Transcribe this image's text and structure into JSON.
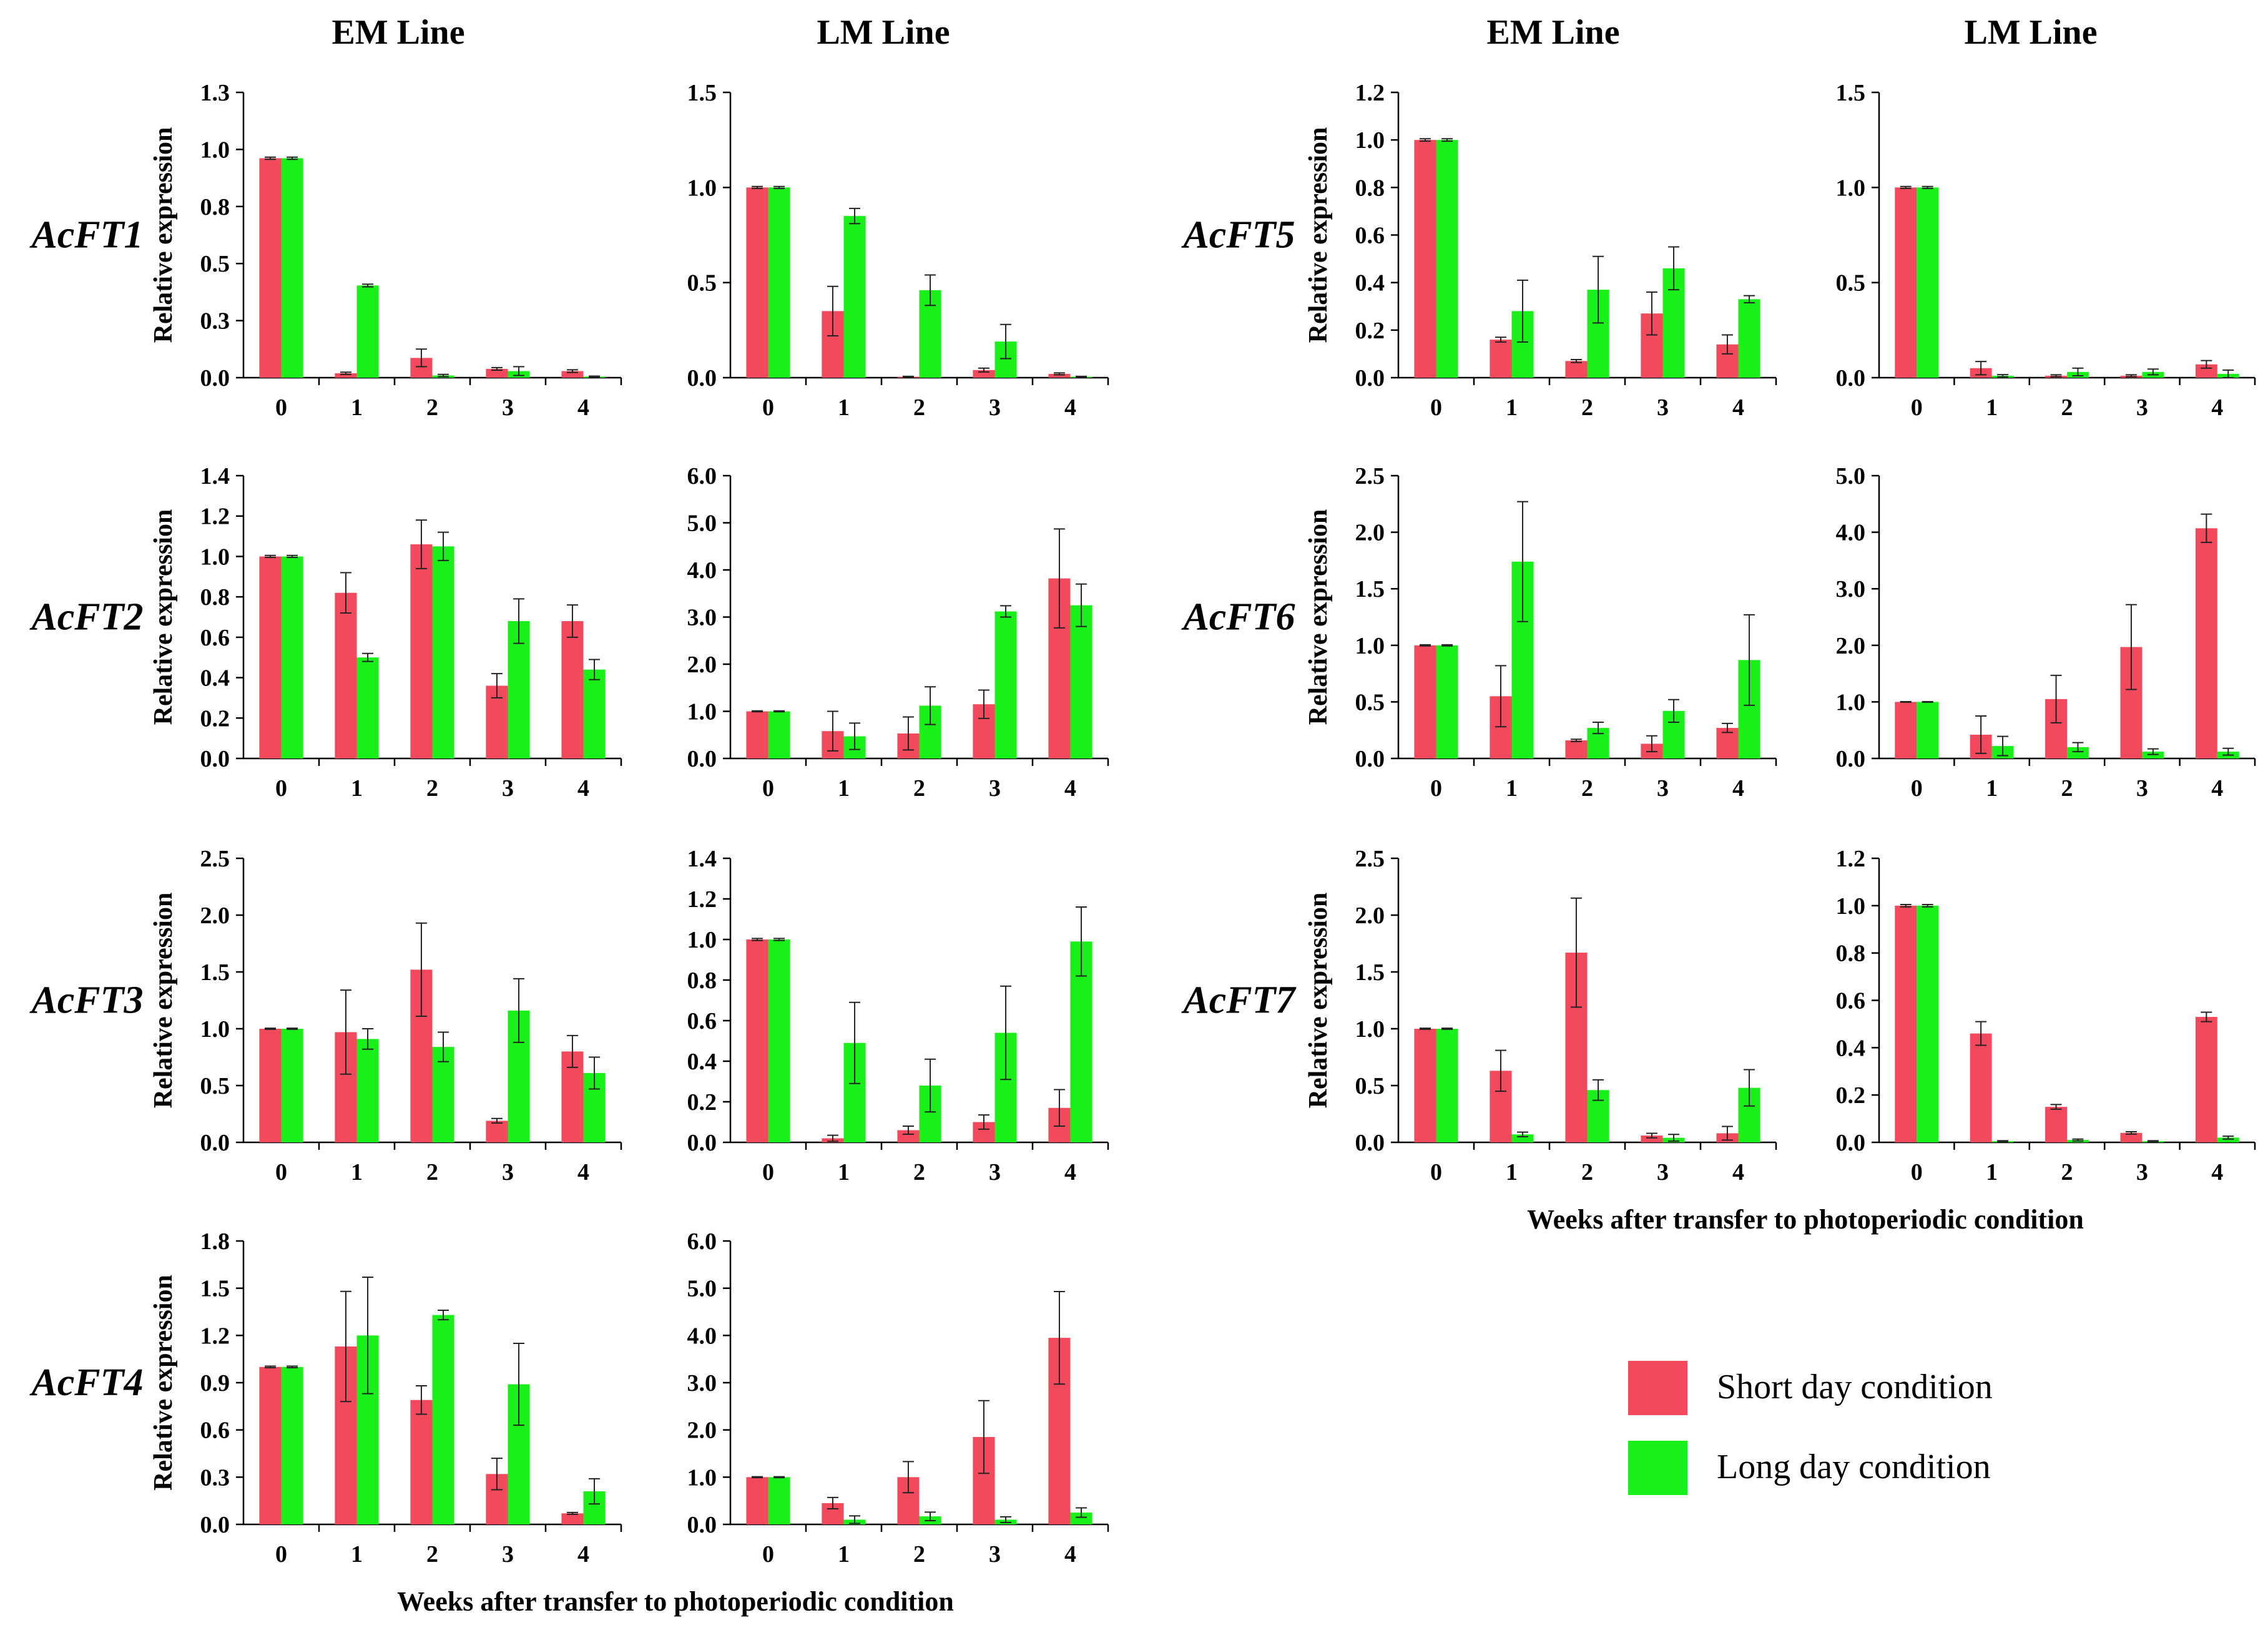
{
  "colors": {
    "short_day": "#F24A5C",
    "long_day": "#19F019"
  },
  "column_headers": [
    "EM Line",
    "LM Line",
    "EM Line",
    "LM Line"
  ],
  "x_axis_title": "Weeks after transfer to photoperiodic condition",
  "legend": [
    {
      "label": "Short day condition",
      "color": "#F24A5C"
    },
    {
      "label": "Long day condition",
      "color": "#19F019"
    }
  ],
  "chart_data": [
    {
      "gene": "AcFT1",
      "line": "EM Line",
      "type": "bar",
      "ylabel": "Relative expression",
      "ylim": [
        0,
        1.3
      ],
      "yticks": [
        "0.0",
        "0.3",
        "0.5",
        "0.8",
        "1.0",
        "1.3"
      ],
      "categories": [
        "0",
        "1",
        "2",
        "3",
        "4"
      ],
      "series": [
        {
          "name": "Short day condition",
          "values": [
            1.0,
            0.02,
            0.09,
            0.04,
            0.03
          ],
          "errors": [
            0.005,
            0.005,
            0.04,
            0.006,
            0.006
          ]
        },
        {
          "name": "Long day condition",
          "values": [
            1.0,
            0.42,
            0.01,
            0.03,
            0.005
          ],
          "errors": [
            0.005,
            0.006,
            0.005,
            0.02,
            0.002
          ]
        }
      ]
    },
    {
      "gene": "AcFT1",
      "line": "LM Line",
      "type": "bar",
      "ylabel": "",
      "ylim": [
        0,
        1.5
      ],
      "yticks": [
        "0.0",
        "0.5",
        "1.0",
        "1.5"
      ],
      "categories": [
        "0",
        "1",
        "2",
        "3",
        "4"
      ],
      "series": [
        {
          "name": "Short day condition",
          "values": [
            1.0,
            0.35,
            0.005,
            0.04,
            0.02
          ],
          "errors": [
            0.005,
            0.13,
            0.002,
            0.01,
            0.005
          ]
        },
        {
          "name": "Long day condition",
          "values": [
            1.0,
            0.85,
            0.46,
            0.19,
            0.005
          ],
          "errors": [
            0.005,
            0.04,
            0.08,
            0.09,
            0.002
          ]
        }
      ]
    },
    {
      "gene": "AcFT2",
      "line": "EM Line",
      "type": "bar",
      "ylabel": "Relative expression",
      "ylim": [
        0,
        1.4
      ],
      "yticks": [
        "0.0",
        "0.2",
        "0.4",
        "0.6",
        "0.8",
        "1.0",
        "1.2",
        "1.4"
      ],
      "categories": [
        "0",
        "1",
        "2",
        "3",
        "4"
      ],
      "series": [
        {
          "name": "Short day condition",
          "values": [
            1.0,
            0.82,
            1.06,
            0.36,
            0.68
          ],
          "errors": [
            0.005,
            0.1,
            0.12,
            0.06,
            0.08
          ]
        },
        {
          "name": "Long day condition",
          "values": [
            1.0,
            0.5,
            1.05,
            0.68,
            0.44
          ],
          "errors": [
            0.005,
            0.02,
            0.07,
            0.11,
            0.05
          ]
        }
      ]
    },
    {
      "gene": "AcFT2",
      "line": "LM Line",
      "type": "bar",
      "ylabel": "",
      "ylim": [
        0,
        6.0
      ],
      "yticks": [
        "0.0",
        "1.0",
        "2.0",
        "3.0",
        "4.0",
        "5.0",
        "6.0"
      ],
      "categories": [
        "0",
        "1",
        "2",
        "3",
        "4"
      ],
      "series": [
        {
          "name": "Short day condition",
          "values": [
            1.0,
            0.58,
            0.53,
            1.15,
            3.82
          ],
          "errors": [
            0.01,
            0.42,
            0.35,
            0.3,
            1.05
          ]
        },
        {
          "name": "Long day condition",
          "values": [
            1.0,
            0.47,
            1.12,
            3.12,
            3.25
          ],
          "errors": [
            0.01,
            0.28,
            0.4,
            0.12,
            0.45
          ]
        }
      ]
    },
    {
      "gene": "AcFT3",
      "line": "EM Line",
      "type": "bar",
      "ylabel": "Relative expression",
      "ylim": [
        0,
        2.5
      ],
      "yticks": [
        "0.0",
        "0.5",
        "1.0",
        "1.5",
        "2.0",
        "2.5"
      ],
      "categories": [
        "0",
        "1",
        "2",
        "3",
        "4"
      ],
      "series": [
        {
          "name": "Short day condition",
          "values": [
            1.0,
            0.97,
            1.52,
            0.19,
            0.8
          ],
          "errors": [
            0.005,
            0.37,
            0.41,
            0.02,
            0.14
          ]
        },
        {
          "name": "Long day condition",
          "values": [
            1.0,
            0.91,
            0.84,
            1.16,
            0.61
          ],
          "errors": [
            0.005,
            0.09,
            0.13,
            0.28,
            0.14
          ]
        }
      ]
    },
    {
      "gene": "AcFT3",
      "line": "LM Line",
      "type": "bar",
      "ylabel": "",
      "ylim": [
        0,
        1.4
      ],
      "yticks": [
        "0.0",
        "0.2",
        "0.4",
        "0.6",
        "0.8",
        "1.0",
        "1.2",
        "1.4"
      ],
      "categories": [
        "0",
        "1",
        "2",
        "3",
        "4"
      ],
      "series": [
        {
          "name": "Short day condition",
          "values": [
            1.0,
            0.02,
            0.06,
            0.1,
            0.17
          ],
          "errors": [
            0.005,
            0.015,
            0.02,
            0.035,
            0.09
          ]
        },
        {
          "name": "Long day condition",
          "values": [
            1.0,
            0.49,
            0.28,
            0.54,
            0.99
          ],
          "errors": [
            0.005,
            0.2,
            0.13,
            0.23,
            0.17
          ]
        }
      ]
    },
    {
      "gene": "AcFT4",
      "line": "EM Line",
      "type": "bar",
      "ylabel": "Relative expression",
      "ylim": [
        0,
        1.8
      ],
      "yticks": [
        "0.0",
        "0.3",
        "0.6",
        "0.9",
        "1.2",
        "1.5",
        "1.8"
      ],
      "categories": [
        "0",
        "1",
        "2",
        "3",
        "4"
      ],
      "series": [
        {
          "name": "Short day condition",
          "values": [
            1.0,
            1.13,
            0.79,
            0.32,
            0.07
          ],
          "errors": [
            0.005,
            0.35,
            0.09,
            0.1,
            0.006
          ]
        },
        {
          "name": "Long day condition",
          "values": [
            1.0,
            1.2,
            1.33,
            0.89,
            0.21
          ],
          "errors": [
            0.005,
            0.37,
            0.03,
            0.26,
            0.08
          ]
        }
      ]
    },
    {
      "gene": "AcFT4",
      "line": "LM Line",
      "type": "bar",
      "ylabel": "",
      "ylim": [
        0,
        6.0
      ],
      "yticks": [
        "0.0",
        "1.0",
        "2.0",
        "3.0",
        "4.0",
        "5.0",
        "6.0"
      ],
      "categories": [
        "0",
        "1",
        "2",
        "3",
        "4"
      ],
      "series": [
        {
          "name": "Short day condition",
          "values": [
            1.0,
            0.45,
            1.0,
            1.85,
            3.95
          ],
          "errors": [
            0.01,
            0.12,
            0.33,
            0.77,
            0.98
          ]
        },
        {
          "name": "Long day condition",
          "values": [
            1.0,
            0.1,
            0.17,
            0.1,
            0.25
          ],
          "errors": [
            0.01,
            0.08,
            0.09,
            0.06,
            0.1
          ]
        }
      ]
    },
    {
      "gene": "AcFT5",
      "line": "EM Line",
      "type": "bar",
      "ylabel": "Relative expression",
      "ylim": [
        0,
        1.2
      ],
      "yticks": [
        "0.0",
        "0.2",
        "0.4",
        "0.6",
        "0.8",
        "1.0",
        "1.2"
      ],
      "categories": [
        "0",
        "1",
        "2",
        "3",
        "4"
      ],
      "series": [
        {
          "name": "Short day condition",
          "values": [
            1.0,
            0.16,
            0.07,
            0.27,
            0.14
          ],
          "errors": [
            0.005,
            0.01,
            0.006,
            0.09,
            0.04
          ]
        },
        {
          "name": "Long day condition",
          "values": [
            1.0,
            0.28,
            0.37,
            0.46,
            0.33
          ],
          "errors": [
            0.005,
            0.13,
            0.14,
            0.09,
            0.015
          ]
        }
      ]
    },
    {
      "gene": "AcFT5",
      "line": "LM Line",
      "type": "bar",
      "ylabel": "",
      "ylim": [
        0,
        1.5
      ],
      "yticks": [
        "0.0",
        "0.5",
        "1.0",
        "1.5"
      ],
      "categories": [
        "0",
        "1",
        "2",
        "3",
        "4"
      ],
      "series": [
        {
          "name": "Short day condition",
          "values": [
            1.0,
            0.05,
            0.01,
            0.01,
            0.07
          ],
          "errors": [
            0.005,
            0.035,
            0.005,
            0.005,
            0.02
          ]
        },
        {
          "name": "Long day condition",
          "values": [
            1.0,
            0.01,
            0.03,
            0.03,
            0.02
          ],
          "errors": [
            0.005,
            0.006,
            0.02,
            0.015,
            0.02
          ]
        }
      ]
    },
    {
      "gene": "AcFT6",
      "line": "EM Line",
      "type": "bar",
      "ylabel": "Relative expression",
      "ylim": [
        0,
        2.5
      ],
      "yticks": [
        "0.0",
        "0.5",
        "1.0",
        "1.5",
        "2.0",
        "2.5"
      ],
      "categories": [
        "0",
        "1",
        "2",
        "3",
        "4"
      ],
      "series": [
        {
          "name": "Short day condition",
          "values": [
            1.0,
            0.55,
            0.16,
            0.13,
            0.27
          ],
          "errors": [
            0.005,
            0.27,
            0.01,
            0.07,
            0.04
          ]
        },
        {
          "name": "Long day condition",
          "values": [
            1.0,
            1.74,
            0.27,
            0.42,
            0.87
          ],
          "errors": [
            0.005,
            0.53,
            0.05,
            0.1,
            0.4
          ]
        }
      ]
    },
    {
      "gene": "AcFT6",
      "line": "LM Line",
      "type": "bar",
      "ylabel": "",
      "ylim": [
        0,
        5.0
      ],
      "yticks": [
        "0.0",
        "1.0",
        "2.0",
        "3.0",
        "4.0",
        "5.0"
      ],
      "categories": [
        "0",
        "1",
        "2",
        "3",
        "4"
      ],
      "series": [
        {
          "name": "Short day condition",
          "values": [
            1.0,
            0.42,
            1.05,
            1.97,
            4.07
          ],
          "errors": [
            0.005,
            0.33,
            0.42,
            0.75,
            0.25
          ]
        },
        {
          "name": "Long day condition",
          "values": [
            1.0,
            0.22,
            0.2,
            0.12,
            0.12
          ],
          "errors": [
            0.005,
            0.17,
            0.08,
            0.05,
            0.06
          ]
        }
      ]
    },
    {
      "gene": "AcFT7",
      "line": "EM Line",
      "type": "bar",
      "ylabel": "Relative expression",
      "ylim": [
        0,
        2.5
      ],
      "yticks": [
        "0.0",
        "0.5",
        "1.0",
        "1.5",
        "2.0",
        "2.5"
      ],
      "categories": [
        "0",
        "1",
        "2",
        "3",
        "4"
      ],
      "series": [
        {
          "name": "Short day condition",
          "values": [
            1.0,
            0.63,
            1.67,
            0.06,
            0.08
          ],
          "errors": [
            0.005,
            0.18,
            0.48,
            0.02,
            0.06
          ]
        },
        {
          "name": "Long day condition",
          "values": [
            1.0,
            0.07,
            0.46,
            0.04,
            0.48
          ],
          "errors": [
            0.005,
            0.02,
            0.09,
            0.03,
            0.16
          ]
        }
      ]
    },
    {
      "gene": "AcFT7",
      "line": "LM Line",
      "type": "bar",
      "ylabel": "",
      "ylim": [
        0,
        1.2
      ],
      "yticks": [
        "0.0",
        "0.2",
        "0.4",
        "0.6",
        "0.8",
        "1.0",
        "1.2"
      ],
      "categories": [
        "0",
        "1",
        "2",
        "3",
        "4"
      ],
      "series": [
        {
          "name": "Short day condition",
          "values": [
            1.0,
            0.46,
            0.15,
            0.04,
            0.53
          ],
          "errors": [
            0.005,
            0.05,
            0.01,
            0.005,
            0.02
          ]
        },
        {
          "name": "Long day condition",
          "values": [
            1.0,
            0.005,
            0.01,
            0.005,
            0.02
          ],
          "errors": [
            0.005,
            0.002,
            0.004,
            0.002,
            0.006
          ]
        }
      ]
    }
  ]
}
